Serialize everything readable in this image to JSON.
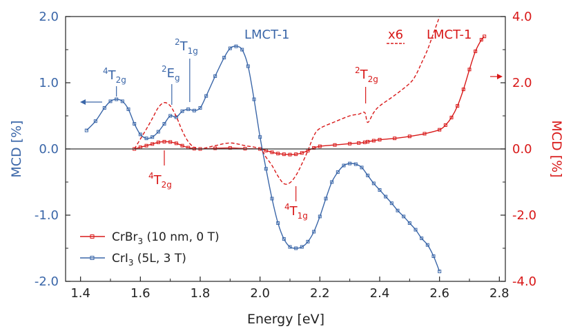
{
  "colors": {
    "cri3": "#3a66a8",
    "crbr3": "#d81818",
    "axis": "#222222"
  },
  "chart_data": {
    "type": "line",
    "title": "",
    "xlabel": "Energy [eV]",
    "ylabel_left": "MCD [%]",
    "ylabel_right": "MCD [%]",
    "xlim": [
      1.35,
      2.82
    ],
    "ylim_left": [
      -2.0,
      2.0
    ],
    "ylim_right": [
      -4.0,
      4.0
    ],
    "x_ticks": [
      1.4,
      1.6,
      1.8,
      2.0,
      2.2,
      2.4,
      2.6,
      2.8
    ],
    "x_tick_labels": [
      "1.4",
      "1.6",
      "1.8",
      "2.0",
      "2.2",
      "2.4",
      "2.6",
      "2.8"
    ],
    "y_left_ticks": [
      -2.0,
      -1.0,
      0.0,
      1.0,
      2.0
    ],
    "y_left_tick_labels": [
      "-2.0",
      "-1.0",
      "0.0",
      "1.0",
      "2.0"
    ],
    "y_right_ticks": [
      -4.0,
      -2.0,
      0.0,
      2.0,
      4.0
    ],
    "y_right_tick_labels": [
      "-4.0",
      "-2.0",
      "0.0",
      "2.0",
      "4.0"
    ],
    "grid": false,
    "legend": "bottom-left",
    "series": [
      {
        "name": "CrBr3 (10 nm, 0 T)",
        "legend_parts": [
          "CrBr",
          "3",
          " (10 nm, 0 T)"
        ],
        "axis": "right",
        "marker": "square",
        "line": "solid",
        "x": [
          1.58,
          1.6,
          1.62,
          1.64,
          1.66,
          1.68,
          1.7,
          1.72,
          1.74,
          1.76,
          1.78,
          1.8,
          1.85,
          1.9,
          1.95,
          2.0,
          2.02,
          2.04,
          2.06,
          2.08,
          2.1,
          2.12,
          2.14,
          2.16,
          2.18,
          2.2,
          2.25,
          2.3,
          2.33,
          2.35,
          2.36,
          2.38,
          2.4,
          2.45,
          2.5,
          2.55,
          2.6,
          2.62,
          2.64,
          2.66,
          2.68,
          2.7,
          2.72,
          2.74,
          2.75
        ],
        "y": [
          0.0,
          0.05,
          0.1,
          0.15,
          0.2,
          0.22,
          0.21,
          0.17,
          0.1,
          0.04,
          0.01,
          0.0,
          0.02,
          0.03,
          0.01,
          0.0,
          -0.05,
          -0.1,
          -0.14,
          -0.16,
          -0.17,
          -0.16,
          -0.12,
          -0.05,
          0.03,
          0.08,
          0.12,
          0.16,
          0.18,
          0.2,
          0.22,
          0.25,
          0.28,
          0.32,
          0.38,
          0.46,
          0.58,
          0.72,
          0.95,
          1.3,
          1.8,
          2.4,
          2.95,
          3.3,
          3.4
        ]
      },
      {
        "name": "CrI3 (5L, 3 T)",
        "legend_parts": [
          "CrI",
          "3",
          " (5L, 3 T)"
        ],
        "axis": "left",
        "marker": "square",
        "line": "solid",
        "x": [
          1.42,
          1.45,
          1.48,
          1.5,
          1.52,
          1.54,
          1.56,
          1.58,
          1.6,
          1.62,
          1.64,
          1.66,
          1.68,
          1.7,
          1.72,
          1.74,
          1.76,
          1.78,
          1.8,
          1.82,
          1.85,
          1.88,
          1.9,
          1.92,
          1.94,
          1.96,
          1.98,
          2.0,
          2.02,
          2.04,
          2.06,
          2.08,
          2.1,
          2.12,
          2.14,
          2.16,
          2.18,
          2.2,
          2.22,
          2.24,
          2.26,
          2.28,
          2.3,
          2.32,
          2.34,
          2.36,
          2.38,
          2.4,
          2.42,
          2.44,
          2.46,
          2.48,
          2.5,
          2.52,
          2.54,
          2.56,
          2.58,
          2.6
        ],
        "y": [
          0.28,
          0.42,
          0.62,
          0.72,
          0.75,
          0.72,
          0.6,
          0.38,
          0.22,
          0.16,
          0.18,
          0.26,
          0.38,
          0.5,
          0.48,
          0.57,
          0.6,
          0.58,
          0.62,
          0.8,
          1.1,
          1.38,
          1.52,
          1.55,
          1.5,
          1.25,
          0.75,
          0.18,
          -0.3,
          -0.75,
          -1.12,
          -1.36,
          -1.48,
          -1.5,
          -1.48,
          -1.4,
          -1.25,
          -1.02,
          -0.75,
          -0.5,
          -0.35,
          -0.25,
          -0.22,
          -0.23,
          -0.28,
          -0.4,
          -0.52,
          -0.62,
          -0.72,
          -0.82,
          -0.93,
          -1.02,
          -1.12,
          -1.22,
          -1.35,
          -1.45,
          -1.62,
          -1.85
        ]
      },
      {
        "name": "",
        "axis": "right",
        "marker": "none",
        "line": "dashed",
        "x": [
          1.58,
          1.6,
          1.62,
          1.64,
          1.66,
          1.68,
          1.7,
          1.72,
          1.74,
          1.76,
          1.78,
          1.8,
          1.85,
          1.9,
          1.95,
          2.0,
          2.02,
          2.04,
          2.06,
          2.08,
          2.1,
          2.12,
          2.14,
          2.16,
          2.18,
          2.2,
          2.25,
          2.3,
          2.33,
          2.35,
          2.36,
          2.38,
          2.4,
          2.45,
          2.5,
          2.52,
          2.54,
          2.56,
          2.58,
          2.6,
          2.61
        ],
        "y": [
          0.0,
          0.3,
          0.6,
          0.92,
          1.25,
          1.4,
          1.3,
          0.98,
          0.55,
          0.22,
          0.05,
          0.0,
          0.1,
          0.18,
          0.1,
          0.0,
          -0.25,
          -0.5,
          -0.82,
          -1.05,
          -1.02,
          -0.8,
          -0.45,
          -0.05,
          0.4,
          0.62,
          0.82,
          1.0,
          1.05,
          1.1,
          0.8,
          1.1,
          1.3,
          1.62,
          1.98,
          2.22,
          2.6,
          3.0,
          3.5,
          4.0,
          4.3
        ]
      }
    ],
    "annotations": [
      {
        "base": "T",
        "sup": "4",
        "sub": "2g"
      },
      {
        "base": "E",
        "sup": "2",
        "sub": "g"
      },
      {
        "base": "T",
        "sup": "2",
        "sub": "1g"
      },
      {
        "base": "LMCT-1",
        "sup": "",
        "sub": ""
      },
      {
        "base": "T",
        "sup": "4",
        "sub": "2g"
      },
      {
        "base": "T",
        "sup": "4",
        "sub": "1g"
      },
      {
        "base": "T",
        "sup": "2",
        "sub": "2g"
      },
      {
        "base": "x6",
        "sup": "",
        "sub": ""
      },
      {
        "base": "LMCT-1",
        "sup": "",
        "sub": ""
      }
    ]
  }
}
